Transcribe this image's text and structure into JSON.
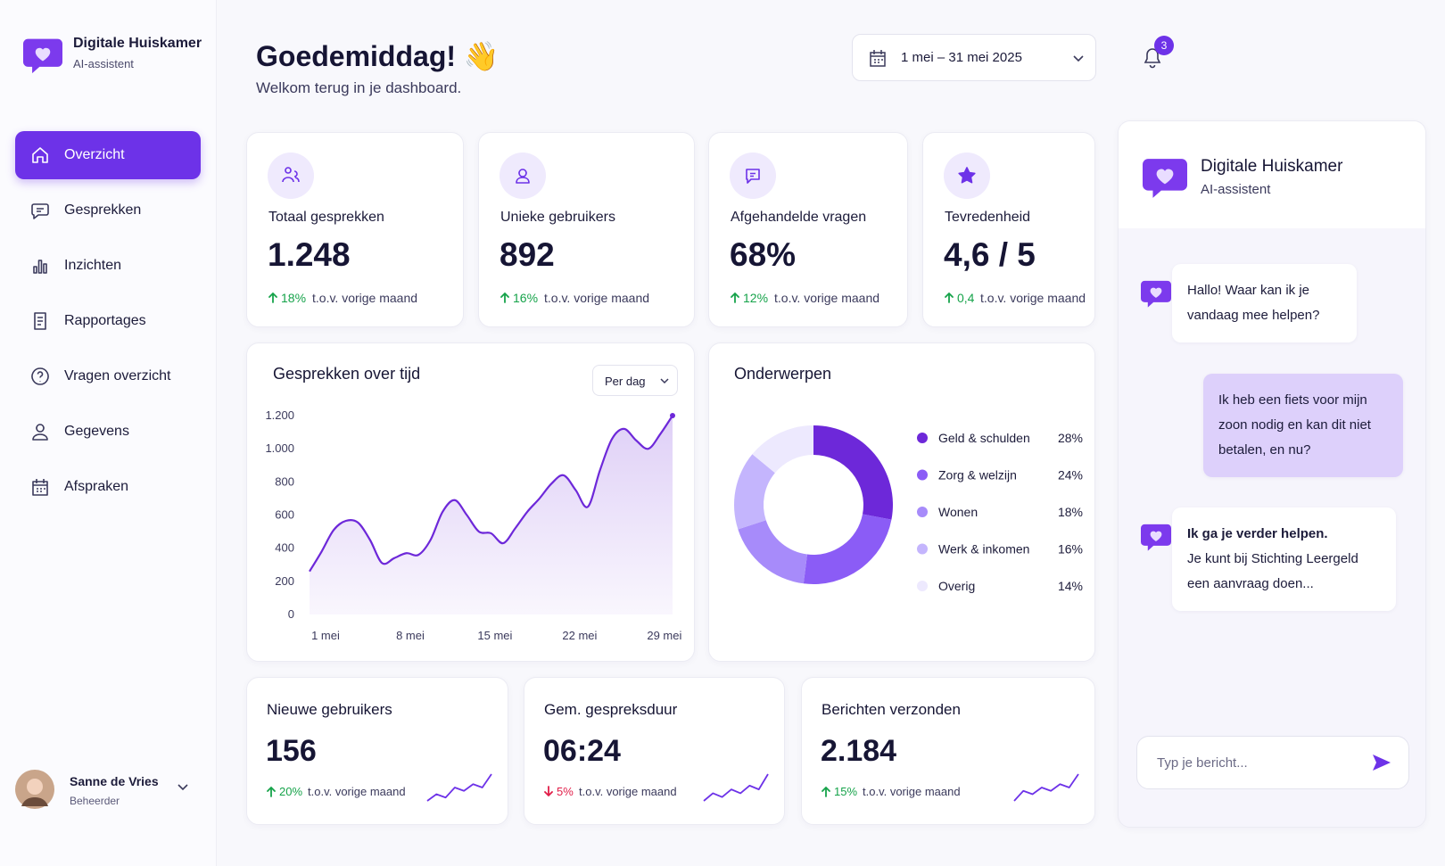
{
  "sidebar": {
    "brand": {
      "title": "Digitale Huiskamer",
      "subtitle": "AI-assistent"
    },
    "nav": [
      {
        "label": "Overzicht",
        "active": true
      },
      {
        "label": "Gesprekken"
      },
      {
        "label": "Inzichten"
      },
      {
        "label": "Rapportages"
      },
      {
        "label": "Vragen overzicht"
      },
      {
        "label": "Gegevens"
      },
      {
        "label": "Afspraken"
      }
    ],
    "user": {
      "name": "Sanne de Vries",
      "role": "Beheerder"
    }
  },
  "header": {
    "greeting": "Goedemiddag! 👋",
    "subtitle": "Welkom terug in je dashboard.",
    "date_range": "1 mei – 31 mei 2025",
    "notifications": 3
  },
  "stats": [
    {
      "label": "Totaal gesprekken",
      "value": "1.248",
      "change": "18%",
      "trend": "up",
      "comparison": "t.o.v. vorige maand"
    },
    {
      "label": "Unieke gebruikers",
      "value": "892",
      "change": "16%",
      "trend": "up",
      "comparison": "t.o.v. vorige maand"
    },
    {
      "label": "Afgehandelde vragen",
      "value": "68%",
      "change": "12%",
      "trend": "up",
      "comparison": "t.o.v. vorige maand"
    },
    {
      "label": "Tevredenheid",
      "value": "4,6 / 5",
      "change": "0,4",
      "trend": "up",
      "comparison": "t.o.v. vorige maand"
    }
  ],
  "chart_data": [
    {
      "type": "line",
      "title": "Gesprekken over tijd",
      "period": "Per dag",
      "categories": [
        "1 mei",
        null,
        null,
        null,
        null,
        null,
        null,
        "8 mei",
        null,
        null,
        null,
        null,
        null,
        null,
        "15 mei",
        null,
        null,
        null,
        null,
        null,
        null,
        "22 mei",
        null,
        null,
        null,
        null,
        null,
        null,
        "29 mei",
        null,
        null
      ],
      "values": [
        260,
        380,
        510,
        565,
        555,
        450,
        310,
        340,
        370,
        360,
        450,
        620,
        690,
        600,
        500,
        490,
        430,
        520,
        620,
        700,
        790,
        840,
        750,
        650,
        870,
        1060,
        1120,
        1050,
        1000,
        1090,
        1200
      ],
      "color": "#6d28d9",
      "area": true,
      "grid": false,
      "ylim": [
        0,
        1200
      ],
      "yticks": [
        0,
        200,
        400,
        600,
        800,
        {
          "value": 1000,
          "label": "1.000"
        },
        {
          "value": 1200,
          "label": "1.200"
        }
      ]
    },
    {
      "type": "donut",
      "title": "Onderwerpen",
      "categories": [
        "Geld & schulden",
        "Zorg & welzijn",
        "Wonen",
        "Werk & inkomen",
        "Overig"
      ],
      "values": [
        28,
        24,
        18,
        16,
        14
      ],
      "value_labels": [
        "28%",
        "24%",
        "18%",
        "16%",
        "14%"
      ],
      "colors": [
        "#6d28d9",
        "#8b5cf6",
        "#a78bfa",
        "#c4b5fd",
        "#ede9fe"
      ]
    }
  ],
  "summary": [
    {
      "label": "Nieuwe gebruikers",
      "value": "156",
      "change": "20%",
      "trend": "up",
      "comparison": "t.o.v. vorige maand",
      "sparkline": [
        2,
        4,
        3,
        6,
        5,
        7,
        6,
        10
      ]
    },
    {
      "label": "Gem. gespreksduur",
      "value": "06:24",
      "change": "5%",
      "trend": "down",
      "comparison": "t.o.v. vorige maand",
      "sparkline": [
        3,
        5,
        4,
        6,
        5,
        7,
        6,
        10
      ]
    },
    {
      "label": "Berichten verzonden",
      "value": "2.184",
      "change": "15%",
      "trend": "up",
      "comparison": "t.o.v. vorige maand",
      "sparkline": [
        2,
        5,
        4,
        6,
        5,
        7,
        6,
        10
      ]
    }
  ],
  "chat": {
    "title": "Digitale Huiskamer",
    "subtitle": "AI-assistent",
    "messages": [
      {
        "from": "bot",
        "text": "Hallo! Waar kan ik je vandaag mee helpen?"
      },
      {
        "from": "user",
        "text": "Ik heb een fiets voor mijn zoon nodig en kan dit niet betalen, en nu?"
      },
      {
        "from": "bot",
        "title": "Ik ga je verder helpen.",
        "text": "Je kunt bij Stichting Leergeld een aanvraag doen..."
      }
    ],
    "placeholder": "Typ je bericht..."
  }
}
